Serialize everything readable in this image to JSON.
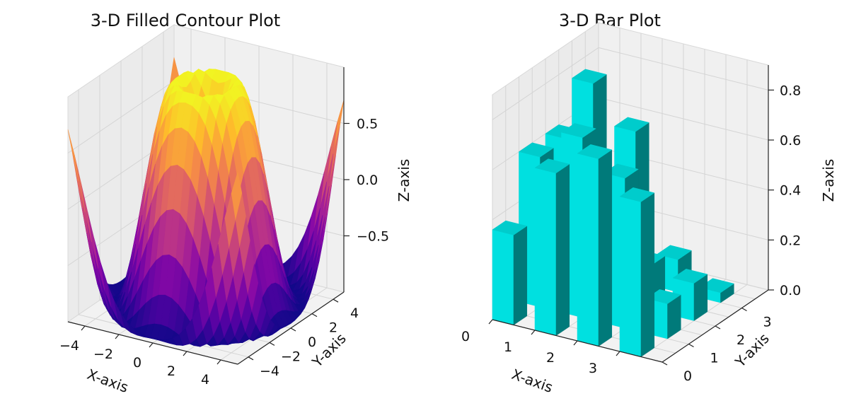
{
  "chart_data": [
    {
      "type": "surface",
      "title": "3-D Filled Contour Plot",
      "xlabel": "X-axis",
      "ylabel": "Y-axis",
      "zlabel": "Z-axis",
      "xlim": [
        -5,
        5
      ],
      "ylim": [
        -5,
        5
      ],
      "zlim": [
        -1,
        1
      ],
      "xticks": [
        "−4",
        "−2",
        "0",
        "2",
        "4"
      ],
      "xtick_values": [
        -4,
        -2,
        0,
        2,
        4
      ],
      "yticks": [
        "−4",
        "−2",
        "0",
        "2",
        "4"
      ],
      "ytick_values": [
        -4,
        -2,
        0,
        2,
        4
      ],
      "zticks": [
        "0.5",
        "0.0",
        "−0.5"
      ],
      "ztick_values": [
        0.5,
        0.0,
        -0.5
      ],
      "function": "sin(sqrt(x^2 + y^2))",
      "colormap": "plasma",
      "grid": true
    },
    {
      "type": "bar3d",
      "title": "3-D Bar Plot",
      "xlabel": "X-axis",
      "ylabel": "Y-axis",
      "zlabel": "Z-axis",
      "xlim": [
        0,
        4
      ],
      "ylim": [
        0,
        4
      ],
      "zlim": [
        0,
        0.9
      ],
      "xticks": [
        "0",
        "1",
        "2",
        "3"
      ],
      "xtick_values": [
        0,
        1,
        2,
        3
      ],
      "yticks": [
        "0",
        "1",
        "2",
        "3"
      ],
      "ytick_values": [
        0,
        1,
        2,
        3
      ],
      "zticks": [
        "0.0",
        "0.2",
        "0.4",
        "0.6",
        "0.8"
      ],
      "ztick_values": [
        0.0,
        0.2,
        0.4,
        0.6,
        0.8
      ],
      "bar_color": "#00e0e0",
      "grid": true,
      "bars": [
        {
          "x": 0,
          "y": 0,
          "z": 0.36
        },
        {
          "x": 0,
          "y": 1,
          "z": 0.6
        },
        {
          "x": 0,
          "y": 2,
          "z": 0.6
        },
        {
          "x": 0,
          "y": 3,
          "z": 0.75
        },
        {
          "x": 1,
          "y": 0,
          "z": 0.65
        },
        {
          "x": 1,
          "y": 1,
          "z": 0.72
        },
        {
          "x": 1,
          "y": 2,
          "z": 0.4
        },
        {
          "x": 1,
          "y": 3,
          "z": 0.6
        },
        {
          "x": 2,
          "y": 0,
          "z": 0.75
        },
        {
          "x": 2,
          "y": 1,
          "z": 0.6
        },
        {
          "x": 2,
          "y": 2,
          "z": 0.18
        },
        {
          "x": 2,
          "y": 3,
          "z": 0.13
        },
        {
          "x": 3,
          "y": 0,
          "z": 0.62
        },
        {
          "x": 3,
          "y": 1,
          "z": 0.14
        },
        {
          "x": 3,
          "y": 2,
          "z": 0.15
        },
        {
          "x": 3,
          "y": 3,
          "z": 0.04
        }
      ]
    }
  ]
}
